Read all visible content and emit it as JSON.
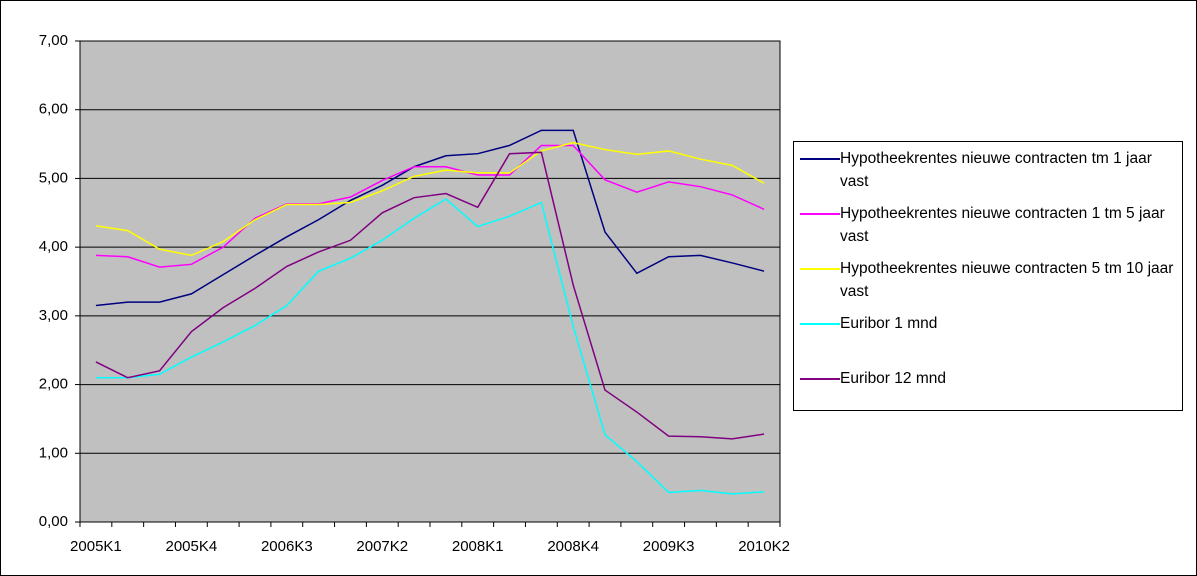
{
  "chart_data": {
    "type": "line",
    "categories": [
      "2005K1",
      null,
      null,
      "2005K4",
      null,
      null,
      "2006K3",
      null,
      null,
      "2007K2",
      null,
      null,
      "2008K1",
      null,
      null,
      "2008K4",
      null,
      null,
      "2009K3",
      null,
      null,
      "2010K2"
    ],
    "ylim": [
      0,
      7
    ],
    "yticks": [
      {
        "value": 0,
        "label": "0,00"
      },
      {
        "value": 1,
        "label": "1,00"
      },
      {
        "value": 2,
        "label": "2,00"
      },
      {
        "value": 3,
        "label": "3,00"
      },
      {
        "value": 4,
        "label": "4,00"
      },
      {
        "value": 5,
        "label": "5,00"
      },
      {
        "value": 6,
        "label": "6,00"
      },
      {
        "value": 7,
        "label": "7,00"
      }
    ],
    "grid": true,
    "series": [
      {
        "name": "Hypotheekrentes nieuwe contracten tm 1 jaar vast",
        "color": "#000080",
        "values": [
          3.15,
          3.2,
          3.2,
          3.32,
          3.6,
          3.88,
          4.15,
          4.4,
          4.68,
          4.9,
          5.17,
          5.33,
          5.36,
          5.48,
          5.7,
          5.7,
          4.22,
          3.62,
          3.86,
          3.88,
          3.77,
          3.65
        ]
      },
      {
        "name": "Hypotheekrentes nieuwe contracten 1 tm 5 jaar vast",
        "color": "#ff00ff",
        "values": [
          3.88,
          3.86,
          3.71,
          3.75,
          4.0,
          4.42,
          4.63,
          4.63,
          4.73,
          4.97,
          5.17,
          5.17,
          5.05,
          5.05,
          5.48,
          5.48,
          4.98,
          4.8,
          4.95,
          4.88,
          4.76,
          4.55
        ]
      },
      {
        "name": "Hypotheekrentes nieuwe contracten 5 tm 10 jaar vast",
        "color": "#ffff00",
        "values": [
          4.31,
          4.24,
          3.97,
          3.88,
          4.08,
          4.4,
          4.62,
          4.62,
          4.65,
          4.82,
          5.03,
          5.12,
          5.08,
          5.08,
          5.4,
          5.52,
          5.42,
          5.35,
          5.4,
          5.28,
          5.19,
          4.93
        ]
      },
      {
        "name": "Euribor 1 mnd",
        "color": "#00ffff",
        "values": [
          2.1,
          2.1,
          2.15,
          2.4,
          2.62,
          2.86,
          3.15,
          3.65,
          3.84,
          4.1,
          4.42,
          4.7,
          4.3,
          4.45,
          4.65,
          2.85,
          1.27,
          0.88,
          0.43,
          0.46,
          0.41,
          0.44
        ]
      },
      {
        "name": "Euribor 12 mnd",
        "color": "#800080",
        "values": [
          2.33,
          2.1,
          2.2,
          2.77,
          3.12,
          3.4,
          3.72,
          3.93,
          4.1,
          4.5,
          4.72,
          4.78,
          4.58,
          5.36,
          5.38,
          3.45,
          1.92,
          1.6,
          1.25,
          1.24,
          1.21,
          1.28
        ]
      }
    ]
  }
}
